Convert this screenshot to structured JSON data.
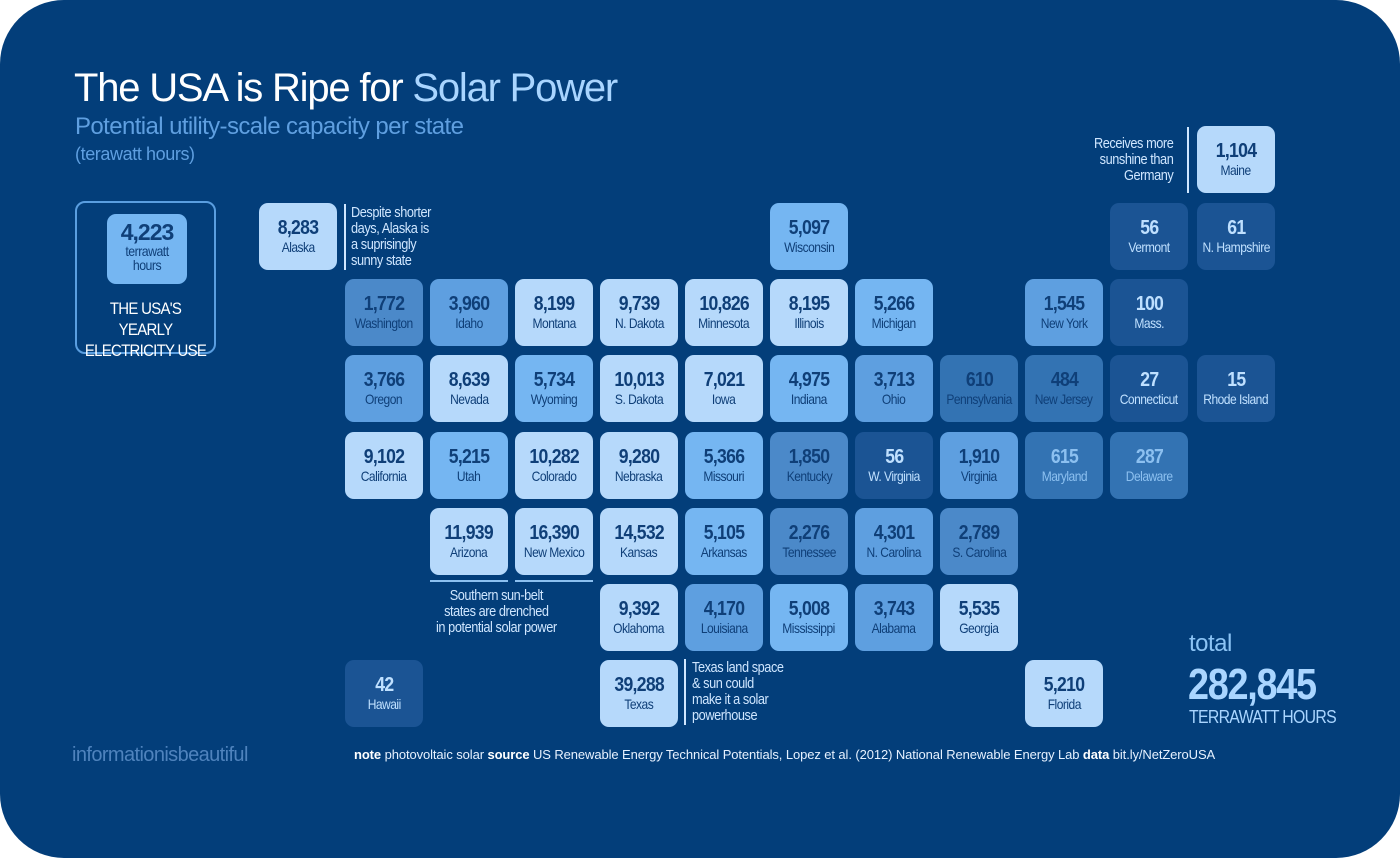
{
  "header": {
    "title_main": "The USA is Ripe for ",
    "title_highlight": "Solar Power",
    "subtitle": "Potential utility-scale capacity per state",
    "units": "(terawatt hours)"
  },
  "usage": {
    "value": "4,223",
    "unit": "terrawatt hours",
    "label": "THE USA'S YEARLY ELECTRICITY USE"
  },
  "notes": {
    "alaska": "Despite shorter\ndays, Alaska is\na suprisingly\nsunny state",
    "maine": "Receives more\nsunshine than\nGermany",
    "sunbelt": "Southern sun-belt\nstates are drenched\nin potential solar power",
    "texas": "Texas land space\n& sun could\nmake it a solar\npowerhouse"
  },
  "total": {
    "label": "total",
    "value": "282,845",
    "unit": "TERRAWATT HOURS"
  },
  "footer": {
    "brand": "informationisbeautiful",
    "note_k": "note",
    "note_v": "photovoltaic solar",
    "source_k": "source",
    "source_v": "US Renewable Energy Technical Potentials, Lopez et al. (2012) National Renewable Energy Lab",
    "data_k": "data",
    "data_v": "bit.ly/NetZeroUSA"
  },
  "colors": {
    "background": "#033e7a",
    "shades": [
      "#b6d9fb",
      "#75b6f2",
      "#5e9fe0",
      "#4b89c9",
      "#3373b3",
      "#1b5494"
    ],
    "text_dark": "#0f3f78",
    "text_light": "#bfe0ff",
    "text_mid": "#8cc0f0"
  },
  "chart_data": {
    "type": "tile-map",
    "title": "The USA is Ripe for Solar Power",
    "subtitle": "Potential utility-scale capacity per state (terawatt hours)",
    "states": [
      {
        "name": "Maine",
        "value": "1,104",
        "shade": 0
      },
      {
        "name": "Alaska",
        "value": "8,283",
        "shade": 0
      },
      {
        "name": "Wisconsin",
        "value": "5,097",
        "shade": 1
      },
      {
        "name": "Vermont",
        "value": "56",
        "shade": 5
      },
      {
        "name": "N. Hampshire",
        "value": "61",
        "shade": 5
      },
      {
        "name": "Washington",
        "value": "1,772",
        "shade": 3
      },
      {
        "name": "Idaho",
        "value": "3,960",
        "shade": 2
      },
      {
        "name": "Montana",
        "value": "8,199",
        "shade": 0
      },
      {
        "name": "N. Dakota",
        "value": "9,739",
        "shade": 0
      },
      {
        "name": "Minnesota",
        "value": "10,826",
        "shade": 0
      },
      {
        "name": "Illinois",
        "value": "8,195",
        "shade": 0
      },
      {
        "name": "Michigan",
        "value": "5,266",
        "shade": 1
      },
      {
        "name": "New York",
        "value": "1,545",
        "shade": 2
      },
      {
        "name": "Mass.",
        "value": "100",
        "shade": 5
      },
      {
        "name": "Oregon",
        "value": "3,766",
        "shade": 2
      },
      {
        "name": "Nevada",
        "value": "8,639",
        "shade": 0
      },
      {
        "name": "Wyoming",
        "value": "5,734",
        "shade": 1
      },
      {
        "name": "S. Dakota",
        "value": "10,013",
        "shade": 0
      },
      {
        "name": "Iowa",
        "value": "7,021",
        "shade": 0
      },
      {
        "name": "Indiana",
        "value": "4,975",
        "shade": 1
      },
      {
        "name": "Ohio",
        "value": "3,713",
        "shade": 2
      },
      {
        "name": "Pennsylvania",
        "value": "610",
        "shade": 4
      },
      {
        "name": "New Jersey",
        "value": "484",
        "shade": 4
      },
      {
        "name": "Connecticut",
        "value": "27",
        "shade": 5
      },
      {
        "name": "Rhode Island",
        "value": "15",
        "shade": 5
      },
      {
        "name": "California",
        "value": "9,102",
        "shade": 0
      },
      {
        "name": "Utah",
        "value": "5,215",
        "shade": 1
      },
      {
        "name": "Colorado",
        "value": "10,282",
        "shade": 0
      },
      {
        "name": "Nebraska",
        "value": "9,280",
        "shade": 0
      },
      {
        "name": "Missouri",
        "value": "5,366",
        "shade": 1
      },
      {
        "name": "Kentucky",
        "value": "1,850",
        "shade": 3
      },
      {
        "name": "W. Virginia",
        "value": "56",
        "shade": 5
      },
      {
        "name": "Virginia",
        "value": "1,910",
        "shade": 2
      },
      {
        "name": "Maryland",
        "value": "615",
        "shade": 4
      },
      {
        "name": "Delaware",
        "value": "287",
        "shade": 4
      },
      {
        "name": "Arizona",
        "value": "11,939",
        "shade": 0
      },
      {
        "name": "New Mexico",
        "value": "16,390",
        "shade": 0
      },
      {
        "name": "Kansas",
        "value": "14,532",
        "shade": 0
      },
      {
        "name": "Arkansas",
        "value": "5,105",
        "shade": 1
      },
      {
        "name": "Tennessee",
        "value": "2,276",
        "shade": 3
      },
      {
        "name": "N. Carolina",
        "value": "4,301",
        "shade": 2
      },
      {
        "name": "S. Carolina",
        "value": "2,789",
        "shade": 3
      },
      {
        "name": "Oklahoma",
        "value": "9,392",
        "shade": 0
      },
      {
        "name": "Louisiana",
        "value": "4,170",
        "shade": 2
      },
      {
        "name": "Mississippi",
        "value": "5,008",
        "shade": 1
      },
      {
        "name": "Alabama",
        "value": "3,743",
        "shade": 2
      },
      {
        "name": "Georgia",
        "value": "5,535",
        "shade": 0
      },
      {
        "name": "Hawaii",
        "value": "42",
        "shade": 5
      },
      {
        "name": "Texas",
        "value": "39,288",
        "shade": 0
      },
      {
        "name": "Florida",
        "value": "5,210",
        "shade": 0
      }
    ]
  }
}
